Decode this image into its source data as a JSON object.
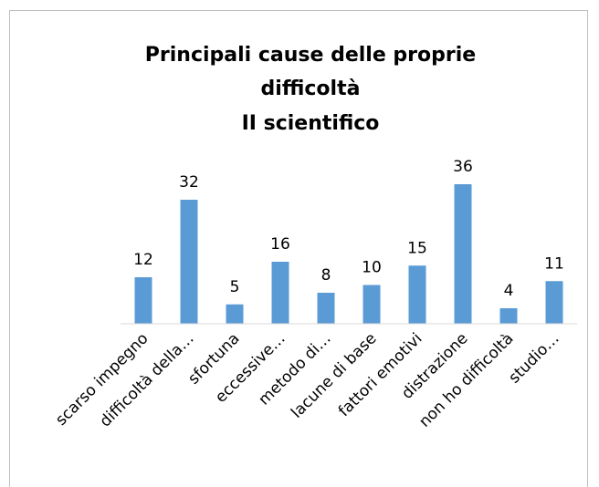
{
  "chart_data": {
    "type": "bar",
    "title": "Principali cause delle proprie difficoltà",
    "subtitle": "II scientifico",
    "categories": [
      "scarso impegno",
      "difficoltà della…",
      "sfortuna",
      "eccessive…",
      "metodo di…",
      "lacune di base",
      "fattori emotivi",
      "distrazione",
      "non ho difficoltà",
      "studio…"
    ],
    "values": [
      12,
      32,
      5,
      16,
      8,
      10,
      15,
      36,
      4,
      11
    ],
    "color": "#5b9bd5",
    "ylim": [
      0,
      40
    ]
  }
}
